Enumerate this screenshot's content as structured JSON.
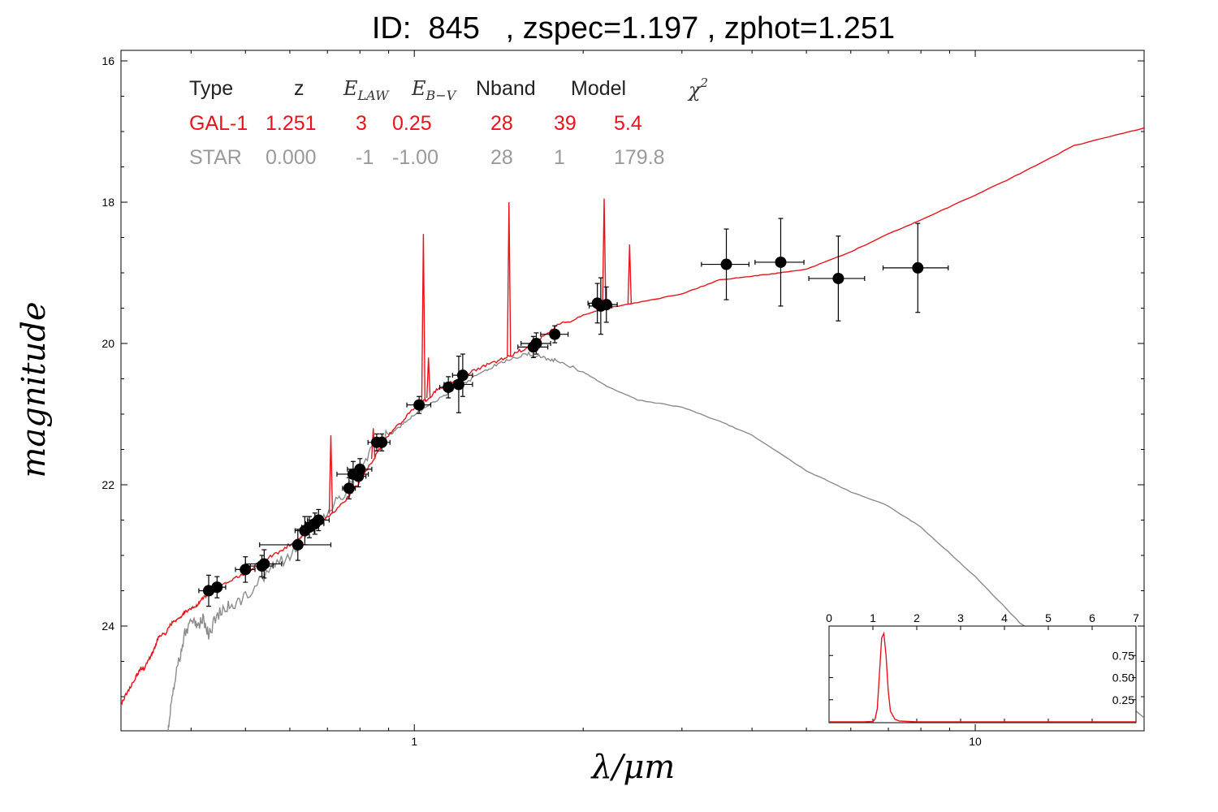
{
  "title": "ID:  845   , zspec=1.197 , zphot=1.251",
  "colors": {
    "galaxy": "#e8141c",
    "star": "#8c8c8c",
    "points": "#000000"
  },
  "table": {
    "headers": [
      "Type",
      "z",
      "E_LAW",
      "E_B-V",
      "Nband",
      "Model",
      "χ²"
    ],
    "header_math": {
      "elaw_main": "E",
      "elaw_sub": "LAW",
      "ebv_main": "E",
      "ebv_sub": "B−V",
      "chi_main": "χ",
      "chi_sup": "2"
    },
    "rows": [
      {
        "type": "GAL-1",
        "z": "1.251",
        "elaw": "3",
        "ebv": "0.25",
        "nband": "28",
        "model": "39",
        "chi2": "5.4",
        "color": "#e8141c"
      },
      {
        "type": "STAR",
        "z": "0.000",
        "elaw": "-1",
        "ebv": "-1.00",
        "nband": "28",
        "model": "1",
        "chi2": "179.8",
        "color": "#9a9a9a"
      }
    ]
  },
  "chart_data": [
    {
      "type": "scatter",
      "xlabel": "λ/μm",
      "ylabel": "magnitude",
      "xscale": "log",
      "yaxis_inverted": true,
      "xlim": [
        0.3,
        20
      ],
      "ylim": [
        25.5,
        15.85
      ],
      "xticks": [
        1,
        10
      ],
      "yticks": [
        16,
        18,
        20,
        22,
        24
      ],
      "xtick_labels": [
        "1",
        "10"
      ],
      "ytick_labels": [
        "16",
        "18",
        "20",
        "22",
        "24"
      ],
      "photometry": [
        {
          "x": 0.43,
          "y": 23.5,
          "yerr": 0.22,
          "xerr": [
            0.017,
            0.017
          ]
        },
        {
          "x": 0.445,
          "y": 23.45,
          "yerr": 0.15,
          "xerr": [
            0.016,
            0.016
          ]
        },
        {
          "x": 0.5,
          "y": 23.2,
          "yerr": 0.18,
          "xerr": [
            0.02,
            0.02
          ]
        },
        {
          "x": 0.535,
          "y": 23.15,
          "yerr": 0.15,
          "xerr": [
            0.025,
            0.025
          ]
        },
        {
          "x": 0.54,
          "y": 23.12,
          "yerr": 0.2,
          "xerr": [
            0.04,
            0.04
          ]
        },
        {
          "x": 0.62,
          "y": 22.85,
          "yerr": 0.22,
          "xerr": [
            0.09,
            0.09
          ]
        },
        {
          "x": 0.638,
          "y": 22.65,
          "yerr": 0.2,
          "xerr": [
            0.025,
            0.025
          ]
        },
        {
          "x": 0.65,
          "y": 22.6,
          "yerr": 0.15,
          "xerr": [
            0.02,
            0.02
          ]
        },
        {
          "x": 0.665,
          "y": 22.55,
          "yerr": 0.15,
          "xerr": [
            0.025,
            0.025
          ]
        },
        {
          "x": 0.675,
          "y": 22.5,
          "yerr": 0.15,
          "xerr": [
            0.03,
            0.03
          ]
        },
        {
          "x": 0.765,
          "y": 22.05,
          "yerr": 0.15,
          "xerr": [
            0.02,
            0.02
          ]
        },
        {
          "x": 0.778,
          "y": 21.85,
          "yerr": 0.18,
          "xerr": [
            0.05,
            0.05
          ]
        },
        {
          "x": 0.795,
          "y": 21.88,
          "yerr": 0.15,
          "xerr": [
            0.025,
            0.025
          ]
        },
        {
          "x": 0.8,
          "y": 21.78,
          "yerr": 0.15,
          "xerr": [
            0.04,
            0.04
          ]
        },
        {
          "x": 0.857,
          "y": 21.4,
          "yerr": 0.12,
          "xerr": [
            0.03,
            0.03
          ]
        },
        {
          "x": 0.875,
          "y": 21.4,
          "yerr": 0.12,
          "xerr": [
            0.03,
            0.03
          ]
        },
        {
          "x": 1.02,
          "y": 20.87,
          "yerr": 0.12,
          "xerr": [
            0.05,
            0.05
          ]
        },
        {
          "x": 1.15,
          "y": 20.62,
          "yerr": 0.15,
          "xerr": [
            0.04,
            0.04
          ]
        },
        {
          "x": 1.2,
          "y": 20.58,
          "yerr": 0.4,
          "xerr": [
            0.07,
            0.07
          ]
        },
        {
          "x": 1.22,
          "y": 20.45,
          "yerr": 0.3,
          "xerr": [
            0.05,
            0.05
          ]
        },
        {
          "x": 1.63,
          "y": 20.05,
          "yerr": 0.15,
          "xerr": [
            0.1,
            0.1
          ]
        },
        {
          "x": 1.65,
          "y": 20.0,
          "yerr": 0.15,
          "xerr": [
            0.1,
            0.1
          ]
        },
        {
          "x": 1.78,
          "y": 19.87,
          "yerr": 0.12,
          "xerr": [
            0.1,
            0.1
          ]
        },
        {
          "x": 2.12,
          "y": 19.43,
          "yerr": 0.28,
          "xerr": [
            0.08,
            0.08
          ]
        },
        {
          "x": 2.15,
          "y": 19.47,
          "yerr": 0.4,
          "xerr": [
            0.1,
            0.1
          ]
        },
        {
          "x": 2.2,
          "y": 19.45,
          "yerr": 0.25,
          "xerr": [
            0.1,
            0.1
          ]
        },
        {
          "x": 3.6,
          "y": 18.88,
          "yerr": 0.5,
          "xerr": [
            0.35,
            0.35
          ]
        },
        {
          "x": 4.5,
          "y": 18.85,
          "yerr": 0.62,
          "xerr": [
            0.45,
            0.45
          ]
        },
        {
          "x": 5.7,
          "y": 19.08,
          "yerr": 0.6,
          "xerr": [
            0.65,
            0.65
          ]
        },
        {
          "x": 7.9,
          "y": 18.93,
          "yerr": 0.63,
          "xerr": [
            1.05,
            1.05
          ]
        }
      ],
      "series": [
        {
          "name": "GAL-1",
          "color": "#e8141c",
          "x": [
            0.29,
            0.3,
            0.31,
            0.32,
            0.325,
            0.33,
            0.34,
            0.345,
            0.35,
            0.36,
            0.37,
            0.38,
            0.39,
            0.4,
            0.41,
            0.42,
            0.43,
            0.45,
            0.47,
            0.5,
            0.53,
            0.56,
            0.6,
            0.65,
            0.7,
            0.75,
            0.8,
            0.85,
            0.9,
            0.95,
            1.0,
            1.05,
            1.1,
            1.2,
            1.3,
            1.4,
            1.5,
            1.6,
            1.7,
            1.8,
            2.0,
            2.2,
            2.5,
            3.0,
            3.5,
            4.0,
            4.5,
            5.0,
            6.0,
            7.0,
            8.0,
            10.0,
            12.0,
            15.0,
            20.0
          ],
          "y": [
            25.6,
            25.1,
            24.9,
            24.7,
            24.6,
            24.6,
            24.4,
            24.3,
            24.15,
            24.1,
            23.95,
            23.9,
            23.8,
            23.75,
            23.7,
            23.6,
            23.55,
            23.45,
            23.35,
            23.25,
            23.1,
            23.0,
            22.85,
            22.65,
            22.45,
            22.25,
            21.95,
            21.6,
            21.3,
            21.1,
            20.9,
            20.8,
            20.65,
            20.5,
            20.35,
            20.25,
            20.15,
            20.05,
            19.9,
            19.75,
            19.6,
            19.5,
            19.42,
            19.3,
            19.1,
            19.05,
            19.0,
            18.95,
            18.7,
            18.45,
            18.25,
            17.9,
            17.6,
            17.2,
            16.95
          ],
          "emission_lines": [
            {
              "x": 1.038,
              "peak": 18.45
            },
            {
              "x": 1.06,
              "peak": 20.2
            },
            {
              "x": 1.475,
              "peak": 18.0
            },
            {
              "x": 2.18,
              "peak": 17.95
            },
            {
              "x": 2.42,
              "peak": 18.6
            },
            {
              "x": 0.71,
              "peak": 21.3
            },
            {
              "x": 0.845,
              "peak": 21.2
            }
          ]
        },
        {
          "name": "STAR",
          "color": "#8c8c8c",
          "x": [
            0.363,
            0.37,
            0.38,
            0.39,
            0.4,
            0.41,
            0.42,
            0.43,
            0.45,
            0.47,
            0.5,
            0.55,
            0.6,
            0.65,
            0.7,
            0.75,
            0.8,
            0.85,
            0.9,
            0.95,
            1.0,
            1.1,
            1.2,
            1.3,
            1.4,
            1.5,
            1.6,
            1.7,
            1.8,
            2.0,
            2.2,
            2.5,
            3.0,
            3.5,
            4.0,
            5.0,
            6.0,
            7.0,
            8.0,
            10.0,
            12.0,
            15.0,
            20.0
          ],
          "y": [
            25.6,
            25.0,
            24.5,
            24.1,
            23.95,
            24.0,
            23.9,
            24.1,
            23.8,
            23.7,
            23.6,
            23.2,
            23.0,
            22.6,
            22.4,
            22.1,
            21.8,
            21.4,
            21.3,
            21.15,
            21.0,
            20.8,
            20.6,
            20.45,
            20.3,
            20.2,
            20.15,
            20.2,
            20.25,
            20.4,
            20.6,
            20.8,
            20.9,
            21.1,
            21.3,
            21.8,
            22.1,
            22.3,
            22.6,
            23.3,
            23.95,
            24.5,
            25.3
          ]
        }
      ]
    },
    {
      "type": "line",
      "title": "",
      "xlim": [
        0,
        7
      ],
      "ylim": [
        0,
        1
      ],
      "xticks": [
        0,
        1,
        2,
        3,
        4,
        5,
        6,
        7
      ],
      "yticks": [
        0.25,
        0.5,
        0.75
      ],
      "ytick_labels": [
        "0.25",
        "0.50",
        "0.75"
      ],
      "series": [
        {
          "name": "",
          "color": "#e8141c",
          "x": [
            0,
            0.8,
            1.0,
            1.05,
            1.1,
            1.15,
            1.2,
            1.25,
            1.3,
            1.35,
            1.4,
            1.5,
            1.6,
            1.8,
            2.0,
            7.0
          ],
          "y": [
            0,
            0,
            0.005,
            0.03,
            0.15,
            0.55,
            0.95,
            1.0,
            0.75,
            0.35,
            0.12,
            0.03,
            0.01,
            0.005,
            0,
            0
          ]
        }
      ]
    }
  ]
}
